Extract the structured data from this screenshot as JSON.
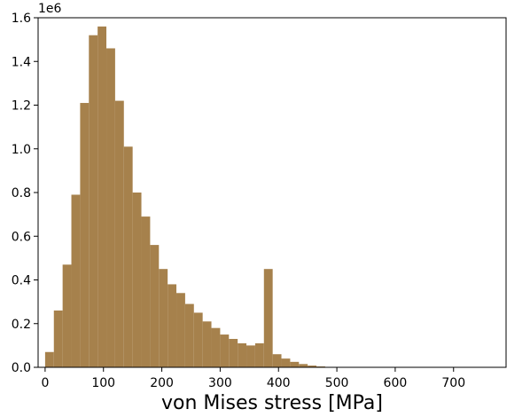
{
  "chart_data": {
    "type": "bar",
    "title": "",
    "xlabel": "von Mises stress [MPa]",
    "ylabel": "",
    "y_multiplier_label": "1e6",
    "bar_color": "#a6814c",
    "bin_width": 15,
    "xlim": [
      -12,
      790
    ],
    "ylim": [
      0,
      1.6
    ],
    "x_ticks": [
      0,
      100,
      200,
      300,
      400,
      500,
      600,
      700
    ],
    "y_ticks": [
      0.0,
      0.2,
      0.4,
      0.6,
      0.8,
      1.0,
      1.2,
      1.4,
      1.6
    ],
    "y_tick_labels": [
      "0.0",
      "0.2",
      "0.4",
      "0.6",
      "0.8",
      "1.0",
      "1.2",
      "1.4",
      "1.6"
    ],
    "grid": false,
    "series": [
      {
        "bin_starts": [
          0,
          15,
          30,
          45,
          60,
          75,
          90,
          105,
          120,
          135,
          150,
          165,
          180,
          195,
          210,
          225,
          240,
          255,
          270,
          285,
          300,
          315,
          330,
          345,
          360,
          375,
          390,
          405,
          420,
          435,
          450,
          465,
          480
        ],
        "values": [
          0.07,
          0.26,
          0.47,
          0.79,
          1.21,
          1.52,
          1.56,
          1.46,
          1.22,
          1.01,
          0.8,
          0.69,
          0.56,
          0.45,
          0.38,
          0.34,
          0.29,
          0.25,
          0.21,
          0.18,
          0.15,
          0.13,
          0.11,
          0.1,
          0.11,
          0.45,
          0.06,
          0.04,
          0.025,
          0.015,
          0.008,
          0.004,
          0.002
        ]
      }
    ]
  }
}
